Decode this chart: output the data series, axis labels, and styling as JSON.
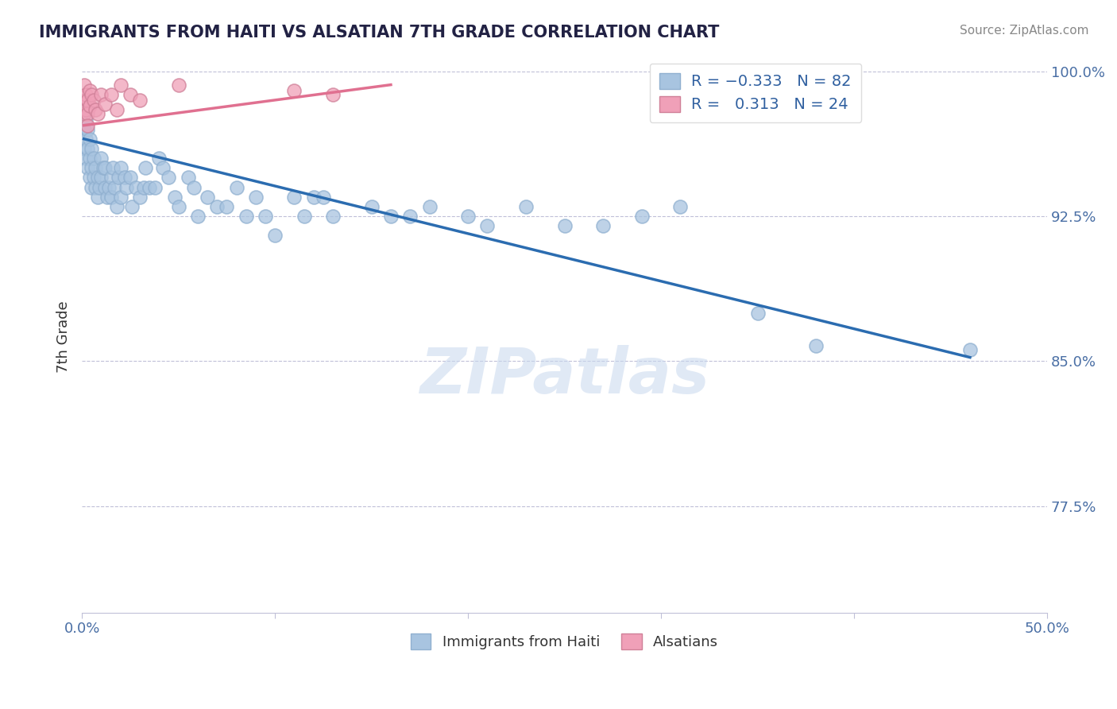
{
  "title": "IMMIGRANTS FROM HAITI VS ALSATIAN 7TH GRADE CORRELATION CHART",
  "source": "Source: ZipAtlas.com",
  "ylabel": "7th Grade",
  "xlim": [
    0.0,
    0.5
  ],
  "ylim": [
    0.72,
    1.005
  ],
  "ytick_right_vals": [
    0.775,
    0.85,
    0.925,
    1.0
  ],
  "ytick_right_labels": [
    "77.5%",
    "85.0%",
    "92.5%",
    "100.0%"
  ],
  "haiti_R": -0.333,
  "haiti_N": 82,
  "alsatian_R": 0.313,
  "alsatian_N": 24,
  "haiti_color": "#a8c4e0",
  "alsatian_color": "#f0a0b8",
  "haiti_line_color": "#2b6cb0",
  "alsatian_line_color": "#e07090",
  "legend_label_haiti": "Immigrants from Haiti",
  "legend_label_alsatian": "Alsatians",
  "watermark": "ZIPatlas",
  "haiti_line_x": [
    0.001,
    0.46
  ],
  "haiti_line_y": [
    0.965,
    0.852
  ],
  "alsatian_line_x": [
    0.001,
    0.16
  ],
  "alsatian_line_y": [
    0.972,
    0.993
  ],
  "haiti_scatter_x": [
    0.001,
    0.001,
    0.002,
    0.002,
    0.002,
    0.003,
    0.003,
    0.003,
    0.003,
    0.004,
    0.004,
    0.004,
    0.005,
    0.005,
    0.005,
    0.006,
    0.006,
    0.007,
    0.007,
    0.008,
    0.008,
    0.009,
    0.01,
    0.01,
    0.011,
    0.012,
    0.012,
    0.013,
    0.014,
    0.015,
    0.015,
    0.016,
    0.017,
    0.018,
    0.019,
    0.02,
    0.02,
    0.022,
    0.023,
    0.025,
    0.026,
    0.028,
    0.03,
    0.032,
    0.033,
    0.035,
    0.038,
    0.04,
    0.042,
    0.045,
    0.048,
    0.05,
    0.055,
    0.058,
    0.06,
    0.065,
    0.07,
    0.075,
    0.08,
    0.085,
    0.09,
    0.095,
    0.1,
    0.11,
    0.115,
    0.12,
    0.125,
    0.13,
    0.15,
    0.16,
    0.17,
    0.18,
    0.2,
    0.21,
    0.23,
    0.25,
    0.27,
    0.29,
    0.31,
    0.35,
    0.38,
    0.46
  ],
  "haiti_scatter_y": [
    0.96,
    0.97,
    0.955,
    0.965,
    0.975,
    0.95,
    0.96,
    0.97,
    0.98,
    0.955,
    0.945,
    0.965,
    0.96,
    0.95,
    0.94,
    0.955,
    0.945,
    0.95,
    0.94,
    0.945,
    0.935,
    0.94,
    0.955,
    0.945,
    0.95,
    0.94,
    0.95,
    0.935,
    0.94,
    0.945,
    0.935,
    0.95,
    0.94,
    0.93,
    0.945,
    0.95,
    0.935,
    0.945,
    0.94,
    0.945,
    0.93,
    0.94,
    0.935,
    0.94,
    0.95,
    0.94,
    0.94,
    0.955,
    0.95,
    0.945,
    0.935,
    0.93,
    0.945,
    0.94,
    0.925,
    0.935,
    0.93,
    0.93,
    0.94,
    0.925,
    0.935,
    0.925,
    0.915,
    0.935,
    0.925,
    0.935,
    0.935,
    0.925,
    0.93,
    0.925,
    0.925,
    0.93,
    0.925,
    0.92,
    0.93,
    0.92,
    0.92,
    0.925,
    0.93,
    0.875,
    0.858,
    0.856
  ],
  "alsatian_scatter_x": [
    0.001,
    0.001,
    0.001,
    0.002,
    0.002,
    0.003,
    0.003,
    0.003,
    0.004,
    0.004,
    0.005,
    0.006,
    0.007,
    0.008,
    0.01,
    0.012,
    0.015,
    0.018,
    0.02,
    0.025,
    0.03,
    0.05,
    0.11,
    0.13
  ],
  "alsatian_scatter_y": [
    0.993,
    0.985,
    0.978,
    0.988,
    0.98,
    0.985,
    0.978,
    0.972,
    0.99,
    0.982,
    0.988,
    0.985,
    0.98,
    0.978,
    0.988,
    0.983,
    0.988,
    0.98,
    0.993,
    0.988,
    0.985,
    0.993,
    0.99,
    0.988
  ]
}
